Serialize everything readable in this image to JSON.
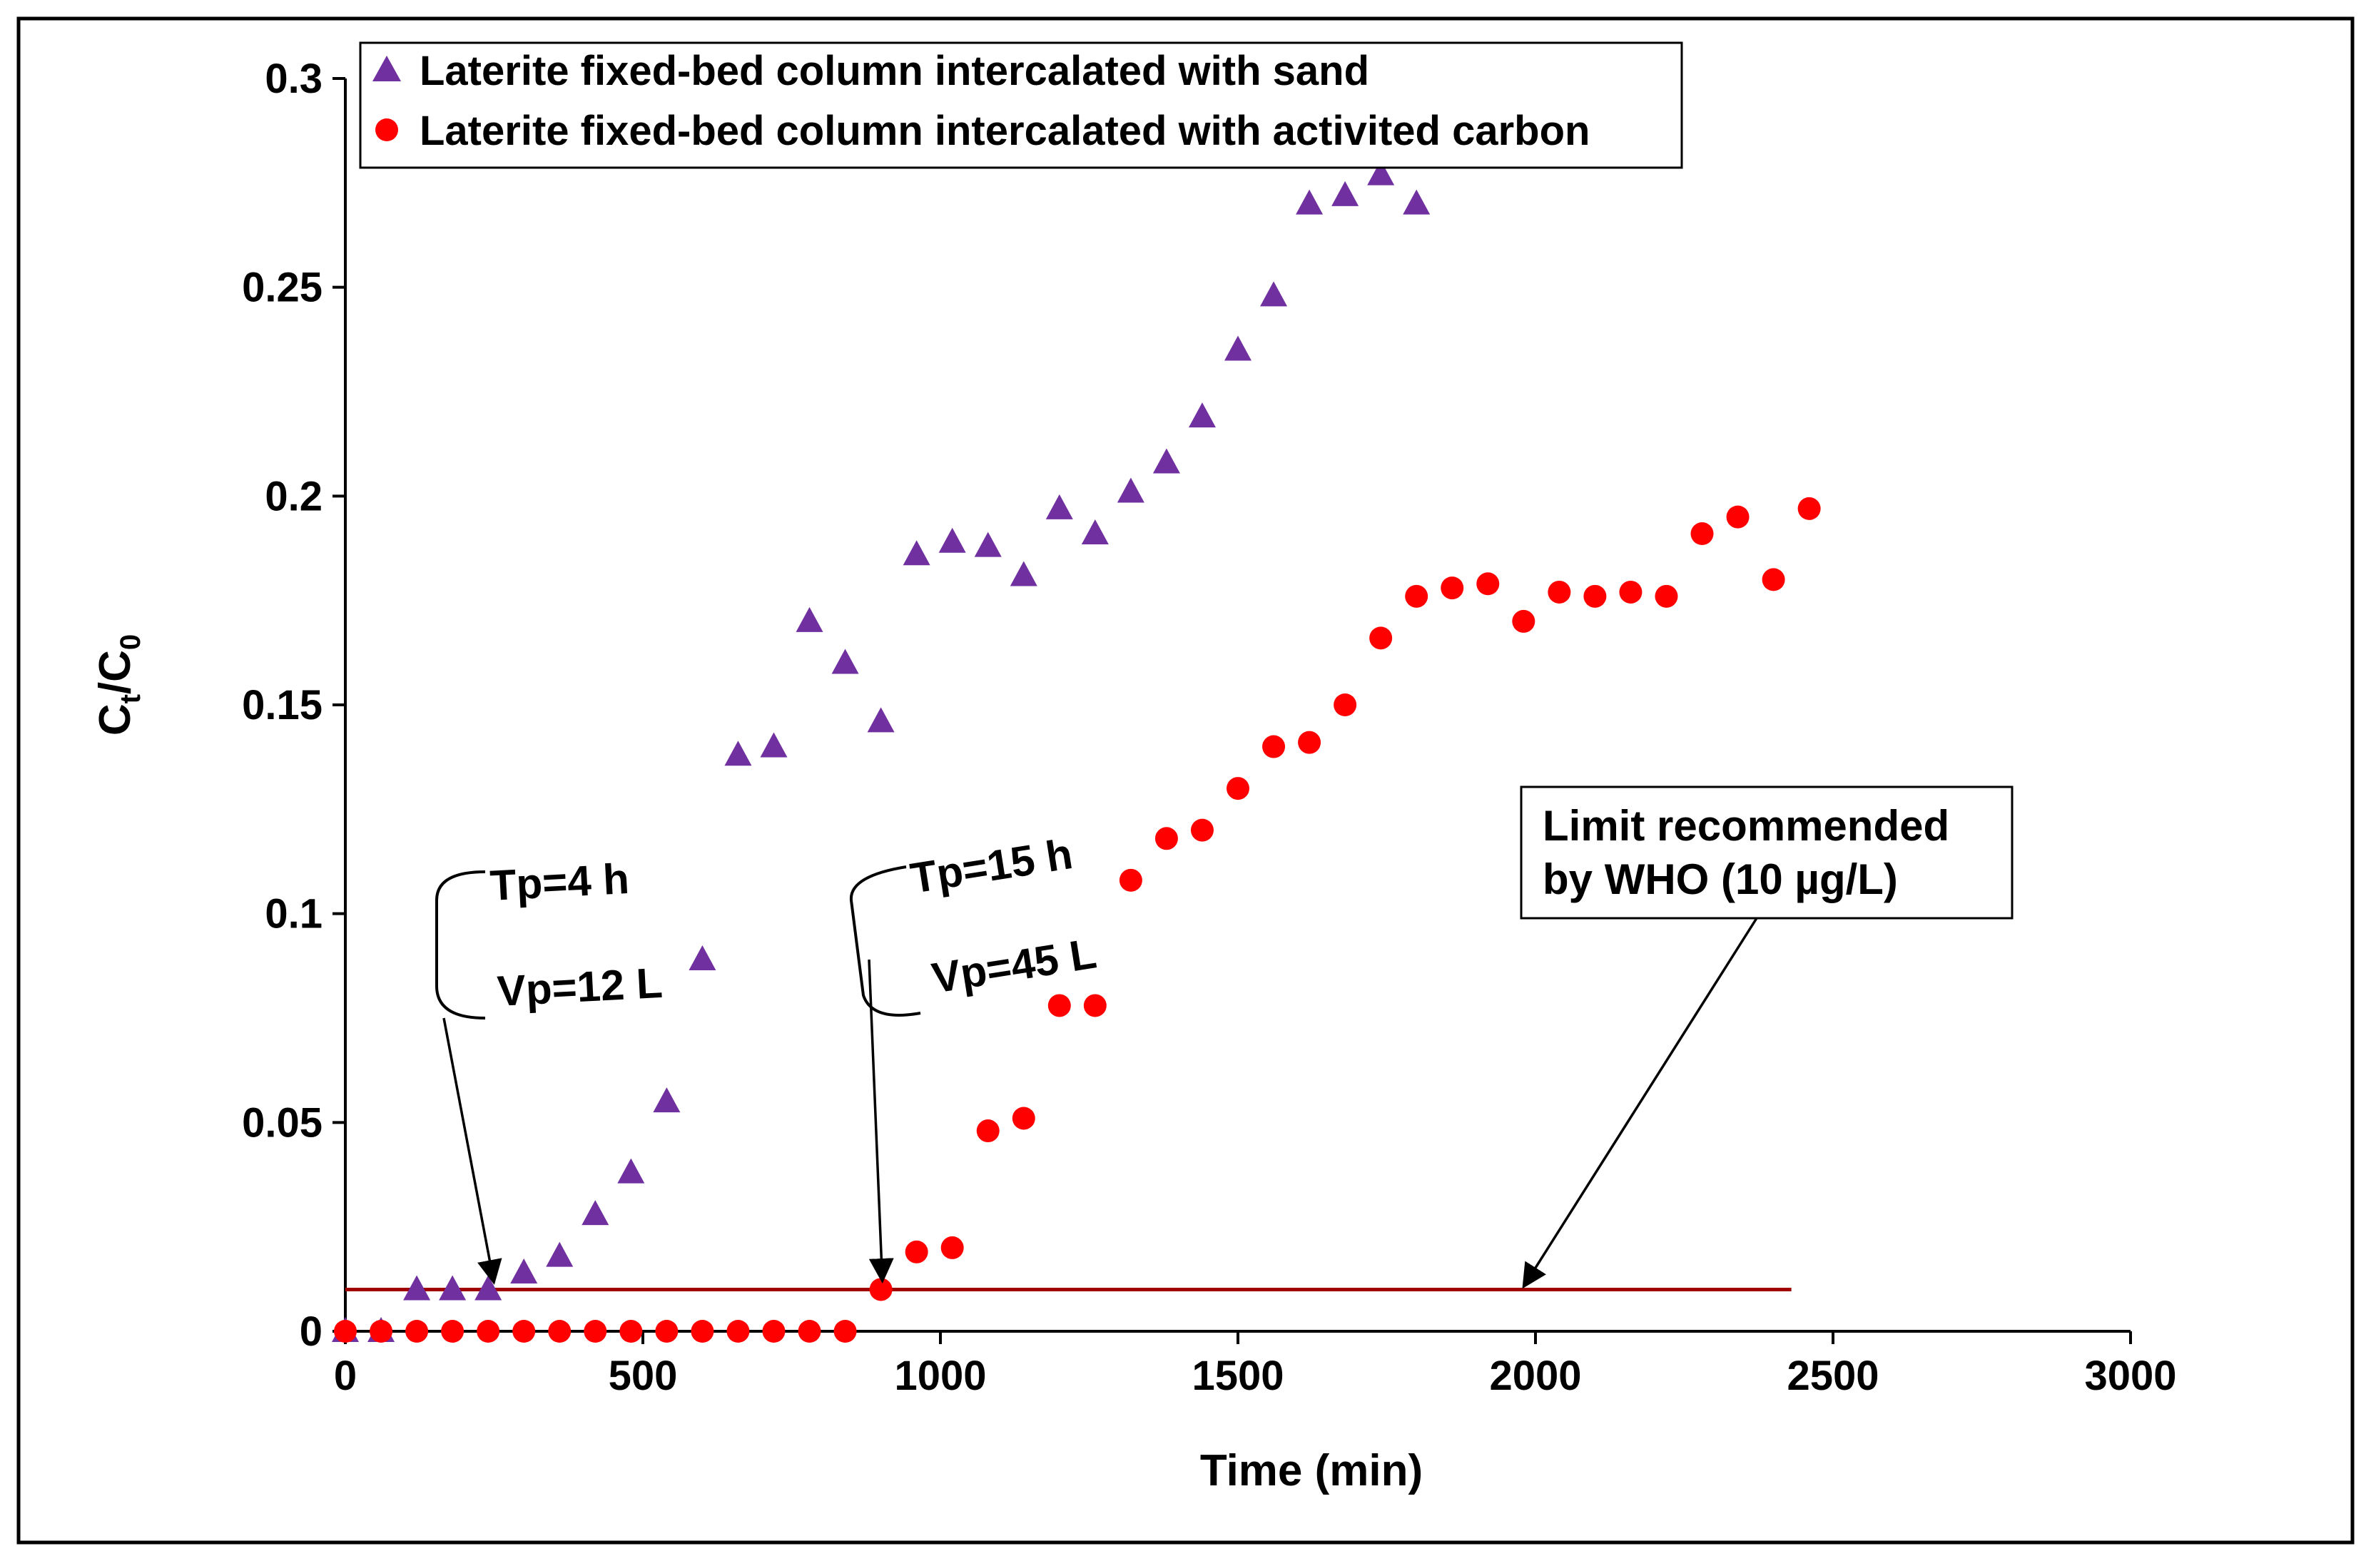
{
  "chart_data": {
    "type": "scatter",
    "title": "",
    "xlabel": "Time (min)",
    "ylabel_main": "C",
    "ylabel_sub1": "t",
    "ylabel_slash": "/C",
    "ylabel_sub2": "0",
    "xlim": [
      0,
      3000
    ],
    "ylim": [
      0,
      0.3
    ],
    "xticks": [
      0,
      500,
      1000,
      1500,
      2000,
      2500,
      3000
    ],
    "xtick_labels": [
      "0",
      "500",
      "1000",
      "1500",
      "2000",
      "2500",
      "3000"
    ],
    "yticks": [
      0,
      0.05,
      0.1,
      0.15,
      0.2,
      0.25,
      0.3
    ],
    "ytick_labels": [
      "0",
      "0.05",
      "0.1",
      "0.15",
      "0.2",
      "0.25",
      "0.3"
    ],
    "legend_position": "top-left",
    "series": [
      {
        "name": "Laterite fixed-bed column intercalated with sand",
        "marker": "triangle",
        "color": "#7030a0",
        "x": [
          0,
          60,
          120,
          180,
          240,
          300,
          360,
          420,
          480,
          540,
          600,
          660,
          720,
          780,
          840,
          900,
          960,
          1020,
          1080,
          1140,
          1200,
          1260,
          1320,
          1380,
          1440,
          1500,
          1560,
          1620,
          1680,
          1740,
          1800
        ],
        "y": [
          0,
          0,
          0.01,
          0.01,
          0.01,
          0.014,
          0.018,
          0.028,
          0.038,
          0.055,
          0.089,
          0.138,
          0.14,
          0.17,
          0.16,
          0.146,
          0.186,
          0.189,
          0.188,
          0.181,
          0.197,
          0.191,
          0.201,
          0.208,
          0.219,
          0.235,
          0.248,
          0.27,
          0.272,
          0.277,
          0.27
        ]
      },
      {
        "name": "Laterite fixed-bed column intercalated with activited carbon",
        "marker": "circle",
        "color": "#ff0000",
        "x": [
          0,
          60,
          120,
          180,
          240,
          300,
          360,
          420,
          480,
          540,
          600,
          660,
          720,
          780,
          840,
          900,
          960,
          1020,
          1080,
          1140,
          1200,
          1260,
          1320,
          1380,
          1440,
          1500,
          1560,
          1620,
          1680,
          1740,
          1800,
          1860,
          1920,
          1980,
          2040,
          2100,
          2160,
          2220,
          2280,
          2340,
          2400,
          2460
        ],
        "y": [
          0,
          0,
          0,
          0,
          0,
          0,
          0,
          0,
          0,
          0,
          0,
          0,
          0,
          0,
          0,
          0.01,
          0.019,
          0.02,
          0.048,
          0.051,
          0.078,
          0.078,
          0.108,
          0.118,
          0.12,
          0.13,
          0.14,
          0.141,
          0.15,
          0.166,
          0.176,
          0.178,
          0.179,
          0.17,
          0.177,
          0.176,
          0.177,
          0.176,
          0.191,
          0.195,
          0.18,
          0.197
        ]
      }
    ],
    "limit_line": {
      "y": 0.01,
      "x_range": [
        0,
        2430
      ],
      "color": "#a00000",
      "label_line1": "Limit recommended",
      "label_line2": "by WHO  (10 µg/L)"
    },
    "annotations": [
      {
        "tp": "Tp=4 h",
        "vp": "Vp=12 L",
        "target_x": 240,
        "target_y": 0.01
      },
      {
        "tp": "Tp=15 h",
        "vp": "Vp=45 L",
        "target_x": 900,
        "target_y": 0.01
      }
    ]
  }
}
